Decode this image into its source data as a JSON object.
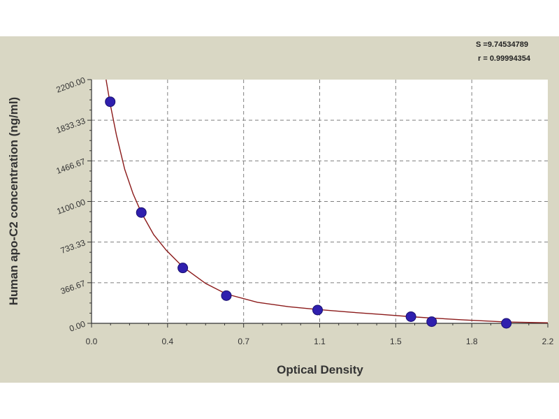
{
  "stats": {
    "s": "S =9.74534789",
    "r": "r = 0.99994354"
  },
  "chart_data": {
    "type": "scatter",
    "xlabel": "Optical Density",
    "ylabel": "Human apo-C2 concentration (ng/ml)",
    "xlim": [
      0.0,
      2.2
    ],
    "ylim": [
      0.0,
      2200.0
    ],
    "xticks": [
      "0.0",
      "0.4",
      "0.7",
      "1.1",
      "1.5",
      "1.8",
      "2.2"
    ],
    "yticks": [
      "0.00",
      "366.67",
      "733.33",
      "1100.00",
      "1466.67",
      "1833.33",
      "2200.00"
    ],
    "grid": true,
    "points": {
      "x": [
        0.09,
        0.24,
        0.44,
        0.65,
        1.09,
        1.54,
        1.64,
        2.0
      ],
      "y": [
        2000,
        1000,
        500,
        250,
        120,
        60,
        15,
        0
      ]
    },
    "fit_curve": {
      "x": [
        0.07,
        0.09,
        0.12,
        0.16,
        0.2,
        0.24,
        0.3,
        0.36,
        0.44,
        0.55,
        0.65,
        0.8,
        0.95,
        1.09,
        1.25,
        1.4,
        1.54,
        1.64,
        1.8,
        2.0,
        2.2
      ],
      "y": [
        2220,
        1980,
        1700,
        1390,
        1170,
        1000,
        800,
        660,
        510,
        360,
        265,
        190,
        150,
        125,
        100,
        80,
        60,
        48,
        30,
        12,
        5
      ]
    },
    "colors": {
      "points": "#2f1fae",
      "curve": "#8b1a1a",
      "grid": "#7f7f7f",
      "plot_bg": "#ffffff",
      "frame_bg": "#d9d7c4"
    }
  }
}
